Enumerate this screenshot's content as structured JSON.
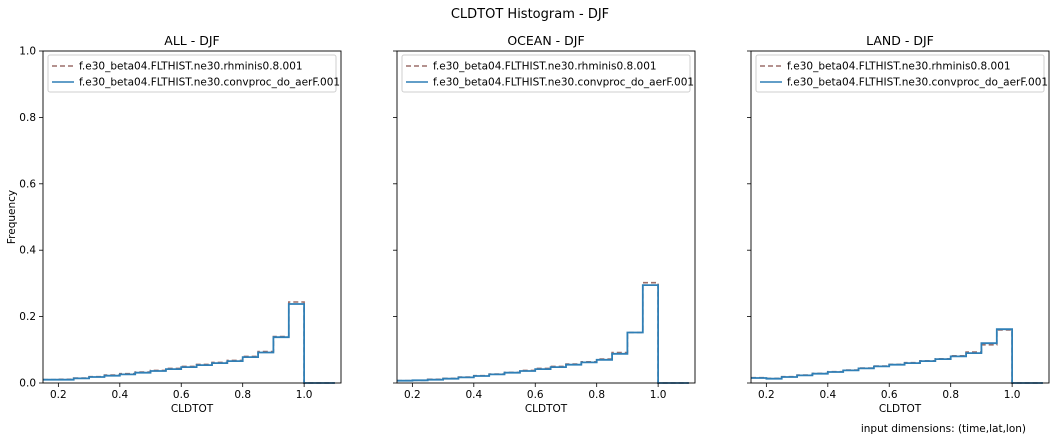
{
  "figure": {
    "suptitle": "CLDTOT Histogram - DJF",
    "note": "input dimensions: (time,lat,lon)"
  },
  "colors": {
    "series_dashed": "#9c6f6a",
    "series_solid": "#2f7fb6"
  },
  "chart_data": [
    {
      "type": "line",
      "title": "ALL - DJF",
      "xlabel": "CLDTOT",
      "ylabel": "Frequency",
      "xlim": [
        0.15,
        1.12
      ],
      "ylim": [
        0,
        1.0
      ],
      "xticks": [
        "0.2",
        "0.4",
        "0.6",
        "0.8",
        "1.0"
      ],
      "yticks": [
        "0.0",
        "0.2",
        "0.4",
        "0.6",
        "0.8",
        "1.0"
      ],
      "legend_position": "top-left",
      "x": [
        0.175,
        0.225,
        0.275,
        0.325,
        0.375,
        0.425,
        0.475,
        0.525,
        0.575,
        0.625,
        0.675,
        0.725,
        0.775,
        0.825,
        0.875,
        0.925,
        0.975,
        1.025,
        1.075
      ],
      "series": [
        {
          "name": "f.e30_beta04.FLTHIST.ne30.rhminis0.8.001",
          "style": "dashed",
          "values": [
            0.01,
            0.011,
            0.015,
            0.019,
            0.024,
            0.028,
            0.033,
            0.038,
            0.044,
            0.05,
            0.056,
            0.062,
            0.068,
            0.08,
            0.095,
            0.14,
            0.244,
            0.0,
            0.0
          ]
        },
        {
          "name": "f.e30_beta04.FLTHIST.ne30.convproc_do_aerF.001",
          "style": "solid",
          "values": [
            0.01,
            0.01,
            0.014,
            0.018,
            0.022,
            0.026,
            0.031,
            0.036,
            0.042,
            0.048,
            0.054,
            0.06,
            0.066,
            0.078,
            0.092,
            0.138,
            0.238,
            0.0,
            0.0
          ]
        }
      ]
    },
    {
      "type": "line",
      "title": "OCEAN - DJF",
      "xlabel": "CLDTOT",
      "ylabel": "",
      "xlim": [
        0.15,
        1.12
      ],
      "ylim": [
        0,
        1.0
      ],
      "xticks": [
        "0.2",
        "0.4",
        "0.6",
        "0.8",
        "1.0"
      ],
      "yticks": [
        "",
        "",
        "",
        "",
        "",
        ""
      ],
      "legend_position": "top-left",
      "x": [
        0.175,
        0.225,
        0.275,
        0.325,
        0.375,
        0.425,
        0.475,
        0.525,
        0.575,
        0.625,
        0.675,
        0.725,
        0.775,
        0.825,
        0.875,
        0.925,
        0.975,
        1.025,
        1.075
      ],
      "series": [
        {
          "name": "f.e30_beta04.FLTHIST.ne30.rhminis0.8.001",
          "style": "dashed",
          "values": [
            0.007,
            0.008,
            0.011,
            0.014,
            0.018,
            0.022,
            0.027,
            0.032,
            0.038,
            0.044,
            0.05,
            0.057,
            0.064,
            0.072,
            0.092,
            0.152,
            0.302,
            0.0,
            0.0
          ]
        },
        {
          "name": "f.e30_beta04.FLTHIST.ne30.convproc_do_aerF.001",
          "style": "solid",
          "values": [
            0.007,
            0.008,
            0.01,
            0.013,
            0.017,
            0.021,
            0.026,
            0.031,
            0.036,
            0.042,
            0.048,
            0.055,
            0.062,
            0.07,
            0.088,
            0.152,
            0.295,
            0.0,
            0.0
          ]
        }
      ]
    },
    {
      "type": "line",
      "title": "LAND - DJF",
      "xlabel": "CLDTOT",
      "ylabel": "",
      "xlim": [
        0.15,
        1.12
      ],
      "ylim": [
        0,
        1.0
      ],
      "xticks": [
        "0.2",
        "0.4",
        "0.6",
        "0.8",
        "1.0"
      ],
      "yticks": [
        "",
        "",
        "",
        "",
        "",
        ""
      ],
      "legend_position": "top-left",
      "x": [
        0.175,
        0.225,
        0.275,
        0.325,
        0.375,
        0.425,
        0.475,
        0.525,
        0.575,
        0.625,
        0.675,
        0.725,
        0.775,
        0.825,
        0.875,
        0.925,
        0.975,
        1.025,
        1.075
      ],
      "series": [
        {
          "name": "f.e30_beta04.FLTHIST.ne30.rhminis0.8.001",
          "style": "dashed",
          "values": [
            0.016,
            0.014,
            0.019,
            0.024,
            0.029,
            0.034,
            0.039,
            0.045,
            0.051,
            0.056,
            0.061,
            0.067,
            0.073,
            0.082,
            0.093,
            0.115,
            0.16,
            0.0,
            0.0
          ]
        },
        {
          "name": "f.e30_beta04.FLTHIST.ne30.convproc_do_aerF.001",
          "style": "solid",
          "values": [
            0.015,
            0.013,
            0.018,
            0.023,
            0.028,
            0.033,
            0.038,
            0.044,
            0.05,
            0.055,
            0.06,
            0.066,
            0.072,
            0.08,
            0.09,
            0.12,
            0.162,
            0.0,
            0.0
          ]
        }
      ]
    }
  ]
}
